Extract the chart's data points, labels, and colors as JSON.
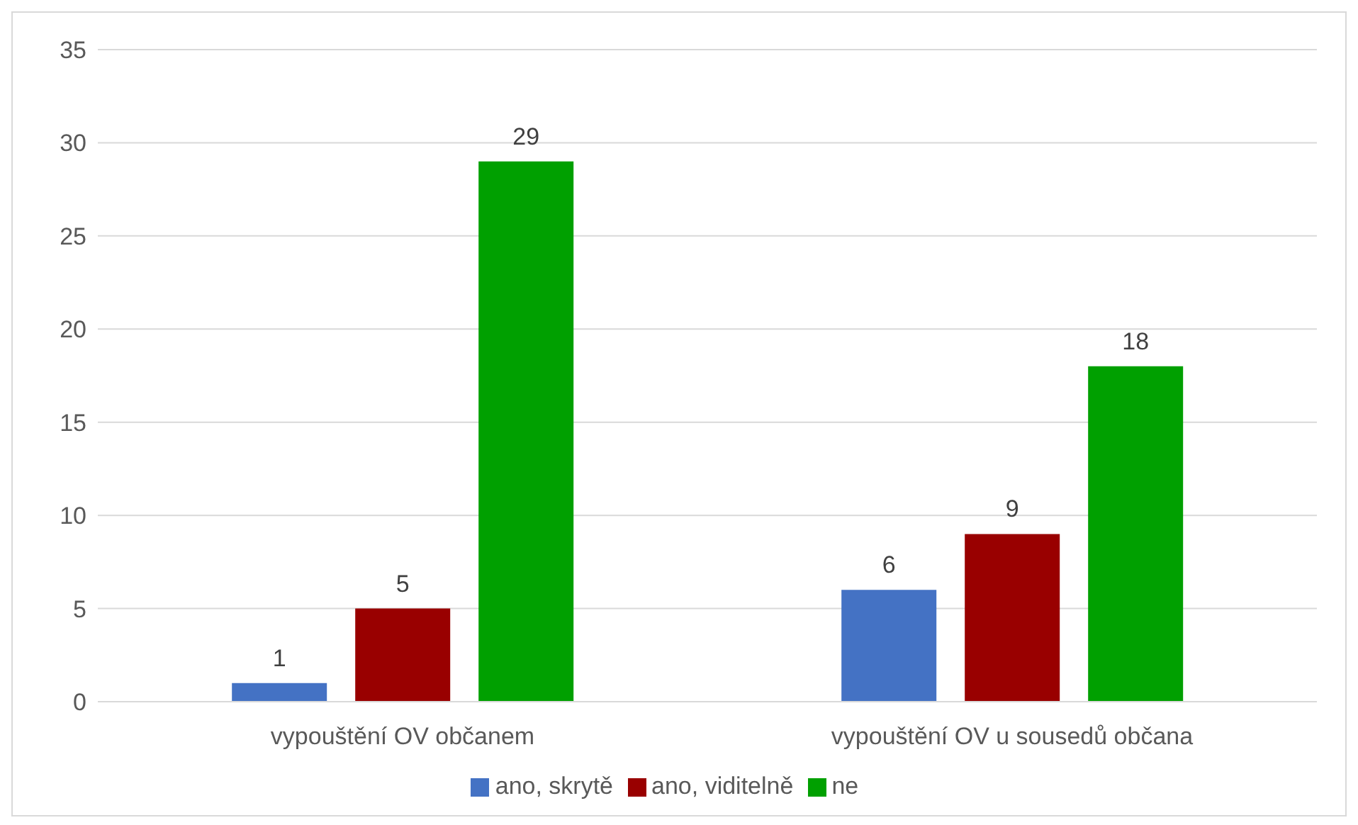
{
  "chart_data": {
    "type": "bar",
    "categories": [
      "vypouštění  OV občanem",
      "vypouštění OV u sousedů občana"
    ],
    "series": [
      {
        "name": "ano, skrytě",
        "color": "#4472c4",
        "values": [
          1,
          6
        ]
      },
      {
        "name": "ano, viditelně",
        "color": "#990000",
        "values": [
          5,
          9
        ]
      },
      {
        "name": "ne",
        "color": "#00a000",
        "values": [
          29,
          18
        ]
      }
    ],
    "ylim": [
      0,
      35
    ],
    "yticks": [
      0,
      5,
      10,
      15,
      20,
      25,
      30,
      35
    ],
    "grid": "y",
    "legend": "bottom",
    "data_labels": true
  }
}
